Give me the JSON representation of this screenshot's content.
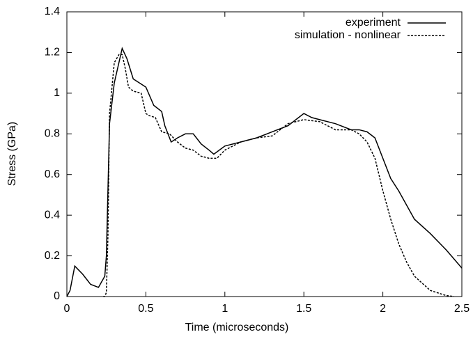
{
  "chart_data": {
    "type": "line",
    "xlabel": "Time (microseconds)",
    "ylabel": "Stress (GPa)",
    "xlim": [
      0,
      2.5
    ],
    "xticks": [
      0,
      0.5,
      1,
      1.5,
      2,
      2.5
    ],
    "ylim": [
      0,
      1.4
    ],
    "yticks": [
      0,
      0.2,
      0.4,
      0.6,
      0.8,
      1,
      1.2,
      1.4
    ],
    "grid": false,
    "legend": "top-right",
    "series": [
      {
        "name": "experiment",
        "color": "#000000",
        "dash": "solid",
        "x": [
          0,
          0.02,
          0.05,
          0.1,
          0.15,
          0.2,
          0.24,
          0.25,
          0.27,
          0.3,
          0.35,
          0.38,
          0.42,
          0.5,
          0.55,
          0.6,
          0.62,
          0.66,
          0.7,
          0.75,
          0.8,
          0.85,
          0.9,
          0.93,
          1.0,
          1.1,
          1.2,
          1.3,
          1.4,
          1.5,
          1.55,
          1.6,
          1.7,
          1.8,
          1.85,
          1.9,
          1.95,
          2.0,
          2.05,
          2.1,
          2.2,
          2.3,
          2.4,
          2.5
        ],
        "values": [
          0,
          0.03,
          0.15,
          0.11,
          0.06,
          0.045,
          0.1,
          0.2,
          0.85,
          1.05,
          1.22,
          1.17,
          1.07,
          1.03,
          0.94,
          0.91,
          0.84,
          0.76,
          0.78,
          0.8,
          0.8,
          0.75,
          0.72,
          0.7,
          0.74,
          0.76,
          0.78,
          0.81,
          0.84,
          0.9,
          0.88,
          0.87,
          0.85,
          0.82,
          0.82,
          0.81,
          0.78,
          0.68,
          0.58,
          0.52,
          0.38,
          0.31,
          0.23,
          0.14
        ]
      },
      {
        "name": "simulation - nonlinear",
        "color": "#000000",
        "dash": "dashed",
        "x": [
          0.23,
          0.24,
          0.25,
          0.26,
          0.27,
          0.3,
          0.33,
          0.35,
          0.37,
          0.39,
          0.42,
          0.47,
          0.5,
          0.52,
          0.56,
          0.6,
          0.65,
          0.7,
          0.75,
          0.8,
          0.85,
          0.9,
          0.95,
          1.0,
          1.1,
          1.2,
          1.3,
          1.35,
          1.4,
          1.5,
          1.6,
          1.7,
          1.8,
          1.85,
          1.9,
          1.95,
          2.0,
          2.05,
          2.1,
          2.15,
          2.2,
          2.3,
          2.4,
          2.45
        ],
        "values": [
          0,
          0,
          0.02,
          0.3,
          0.9,
          1.15,
          1.19,
          1.19,
          1.12,
          1.03,
          1.01,
          1.0,
          0.9,
          0.89,
          0.88,
          0.81,
          0.8,
          0.76,
          0.73,
          0.72,
          0.69,
          0.68,
          0.68,
          0.72,
          0.76,
          0.78,
          0.79,
          0.82,
          0.85,
          0.87,
          0.86,
          0.82,
          0.82,
          0.8,
          0.76,
          0.68,
          0.52,
          0.38,
          0.26,
          0.17,
          0.1,
          0.03,
          0.005,
          0
        ]
      }
    ]
  }
}
